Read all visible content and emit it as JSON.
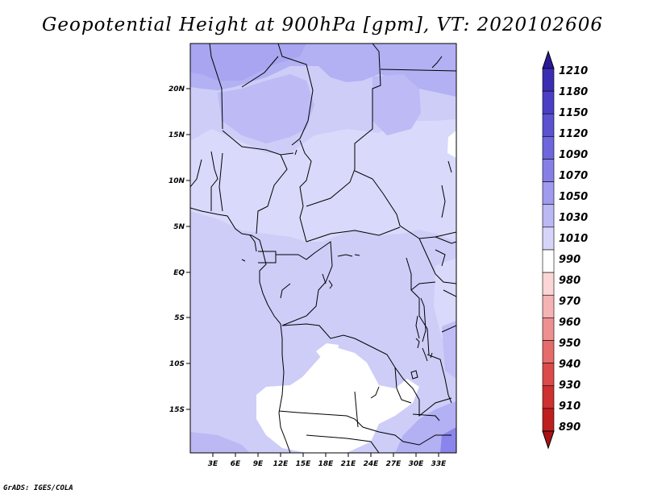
{
  "title": "Geopotential Height at 900hPa [gpm], VT: 2020102606",
  "footer": "GrADS: IGES/COLA",
  "map": {
    "lon_labels": [
      "3E",
      "6E",
      "9E",
      "12E",
      "15E",
      "18E",
      "21E",
      "24E",
      "27E",
      "30E",
      "33E"
    ],
    "lat_labels": [
      "20N",
      "15N",
      "10N",
      "5N",
      "EQ",
      "5S",
      "10S",
      "15S"
    ]
  },
  "colorbar": {
    "labels": [
      "1210",
      "1180",
      "1150",
      "1120",
      "1090",
      "1070",
      "1050",
      "1030",
      "1010",
      "990",
      "980",
      "970",
      "960",
      "950",
      "940",
      "930",
      "910",
      "890"
    ],
    "colors": [
      "#2a1a99",
      "#3b2db2",
      "#4a3fc4",
      "#5a52d1",
      "#6d66dd",
      "#8680e6",
      "#a09bed",
      "#bbb8f3",
      "#d6d5f9",
      "#ffffff",
      "#fbd6d6",
      "#f5b3b3",
      "#ee9090",
      "#e66b6b",
      "#dc4a4a",
      "#cf3030",
      "#bf1e1e",
      "#a81414"
    ]
  }
}
